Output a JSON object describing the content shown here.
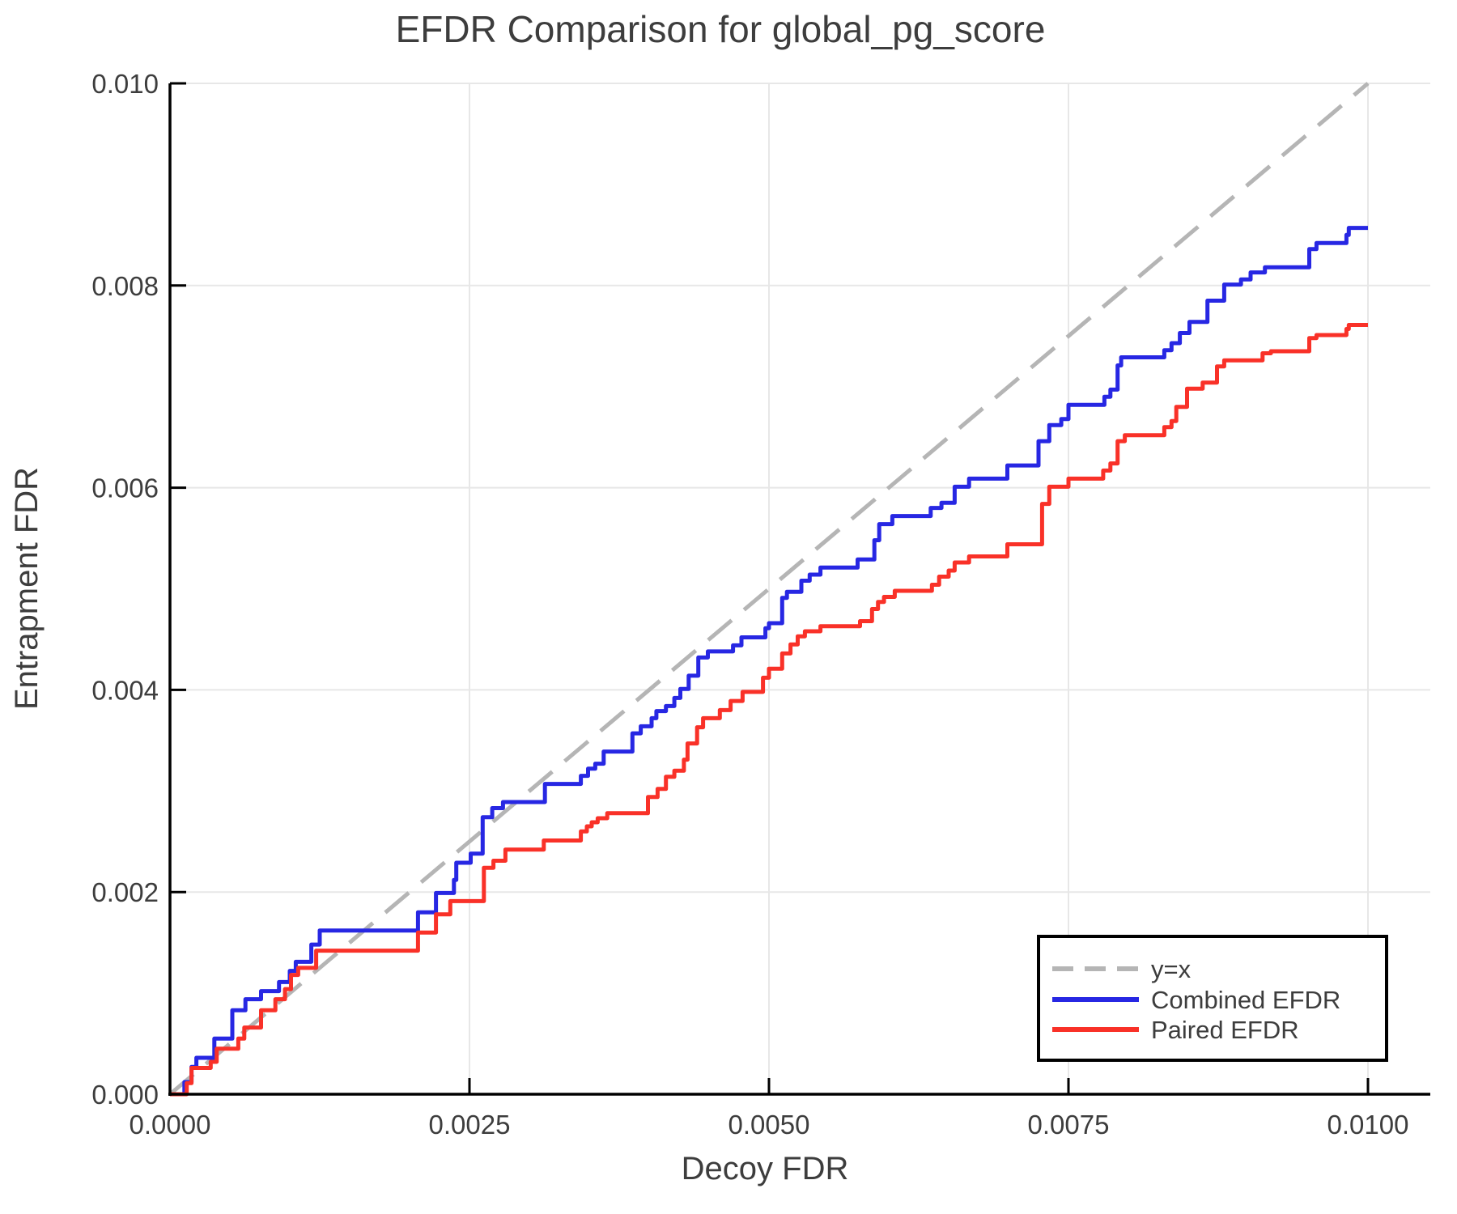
{
  "title": "EFDR Comparison for global_pg_score",
  "axes": {
    "x": {
      "label": "Decoy FDR",
      "tick_values": [
        0,
        0.0025,
        0.005,
        0.0075,
        0.01
      ],
      "tick_labels": [
        "0.0000",
        "0.0025",
        "0.0050",
        "0.0075",
        "0.0100"
      ],
      "range": [
        0,
        0.01052
      ]
    },
    "y": {
      "label": "Entrapment FDR",
      "tick_values": [
        0,
        0.002,
        0.004,
        0.006,
        0.008,
        0.01
      ],
      "tick_labels": [
        "0.000",
        "0.002",
        "0.004",
        "0.006",
        "0.008",
        "0.010"
      ],
      "range": [
        0,
        0.01
      ]
    }
  },
  "legend": {
    "position": "lower right",
    "items": [
      {
        "label": "y=x",
        "color": "#b5b5b5",
        "dashed": true
      },
      {
        "label": "Combined EFDR",
        "color": "#2727e3",
        "dashed": false
      },
      {
        "label": "Paired EFDR",
        "color": "#f93128",
        "dashed": false
      }
    ]
  },
  "colors": {
    "grid": "#e7e7e7",
    "axis": "#000000",
    "text": "#3d3d3d",
    "background": "#ffffff",
    "combined": "#2727e3",
    "paired": "#f93128",
    "identity": "#b5b5b5"
  },
  "chart_data": {
    "type": "line",
    "title": "EFDR Comparison for global_pg_score",
    "xlabel": "Decoy FDR",
    "ylabel": "Entrapment FDR",
    "xlim": [
      0,
      0.01
    ],
    "ylim": [
      0,
      0.01
    ],
    "grid": true,
    "legend_position": "lower right",
    "series": [
      {
        "name": "y=x",
        "style": "dashed",
        "color": "#b5b5b5",
        "points": [
          [
            0,
            0
          ],
          [
            0.01,
            0.01
          ]
        ]
      },
      {
        "name": "Combined EFDR",
        "style": "step",
        "color": "#2727e3",
        "end_x": 0.01,
        "risers": [
          [
            0.00012,
            0.00012
          ],
          [
            0.00018,
            0.00027
          ],
          [
            0.00022,
            0.00036
          ],
          [
            0.00037,
            0.00055
          ],
          [
            0.00052,
            0.00083
          ],
          [
            0.00063,
            0.00094
          ],
          [
            0.00076,
            0.00102
          ],
          [
            0.00091,
            0.00111
          ],
          [
            0.001,
            0.00122
          ],
          [
            0.00105,
            0.00131
          ],
          [
            0.00118,
            0.00148
          ],
          [
            0.00125,
            0.00162
          ],
          [
            0.00207,
            0.0018
          ],
          [
            0.00222,
            0.00199
          ],
          [
            0.00237,
            0.00212
          ],
          [
            0.00239,
            0.00229
          ],
          [
            0.00251,
            0.00238
          ],
          [
            0.00261,
            0.00274
          ],
          [
            0.00269,
            0.00283
          ],
          [
            0.00278,
            0.00289
          ],
          [
            0.00313,
            0.00307
          ],
          [
            0.00343,
            0.00315
          ],
          [
            0.00349,
            0.00322
          ],
          [
            0.00355,
            0.00327
          ],
          [
            0.00362,
            0.00339
          ],
          [
            0.00386,
            0.00357
          ],
          [
            0.00393,
            0.00364
          ],
          [
            0.00402,
            0.00372
          ],
          [
            0.00406,
            0.00379
          ],
          [
            0.00414,
            0.00384
          ],
          [
            0.00421,
            0.00392
          ],
          [
            0.00426,
            0.00401
          ],
          [
            0.00433,
            0.00414
          ],
          [
            0.00441,
            0.00432
          ],
          [
            0.00449,
            0.00438
          ],
          [
            0.0047,
            0.00444
          ],
          [
            0.00477,
            0.00452
          ],
          [
            0.00497,
            0.00461
          ],
          [
            0.005,
            0.00466
          ],
          [
            0.00511,
            0.00491
          ],
          [
            0.00515,
            0.00497
          ],
          [
            0.00527,
            0.00508
          ],
          [
            0.00534,
            0.00514
          ],
          [
            0.00543,
            0.00521
          ],
          [
            0.00574,
            0.00529
          ],
          [
            0.00588,
            0.00548
          ],
          [
            0.00592,
            0.00564
          ],
          [
            0.00603,
            0.00572
          ],
          [
            0.00635,
            0.0058
          ],
          [
            0.00644,
            0.00585
          ],
          [
            0.00655,
            0.00601
          ],
          [
            0.00667,
            0.00609
          ],
          [
            0.00699,
            0.00622
          ],
          [
            0.00725,
            0.00646
          ],
          [
            0.00734,
            0.00662
          ],
          [
            0.00744,
            0.00668
          ],
          [
            0.0075,
            0.00682
          ],
          [
            0.0078,
            0.0069
          ],
          [
            0.00785,
            0.00697
          ],
          [
            0.00791,
            0.00721
          ],
          [
            0.00794,
            0.00729
          ],
          [
            0.0083,
            0.00736
          ],
          [
            0.00836,
            0.00743
          ],
          [
            0.00843,
            0.00753
          ],
          [
            0.00851,
            0.00764
          ],
          [
            0.00866,
            0.00785
          ],
          [
            0.0088,
            0.00801
          ],
          [
            0.00894,
            0.00806
          ],
          [
            0.00902,
            0.00813
          ],
          [
            0.00914,
            0.00818
          ],
          [
            0.00951,
            0.00836
          ],
          [
            0.00957,
            0.00842
          ],
          [
            0.00982,
            0.0085
          ],
          [
            0.00984,
            0.00857
          ]
        ]
      },
      {
        "name": "Paired EFDR",
        "style": "step",
        "color": "#f93128",
        "end_x": 0.01,
        "risers": [
          [
            0.00014,
            0.00011
          ],
          [
            0.00018,
            0.00026
          ],
          [
            0.00034,
            0.00032
          ],
          [
            0.00039,
            0.00045
          ],
          [
            0.00057,
            0.00055
          ],
          [
            0.00062,
            0.00066
          ],
          [
            0.00076,
            0.00083
          ],
          [
            0.00088,
            0.00094
          ],
          [
            0.00096,
            0.00104
          ],
          [
            0.00101,
            0.00118
          ],
          [
            0.00107,
            0.00125
          ],
          [
            0.00122,
            0.00142
          ],
          [
            0.00207,
            0.0016
          ],
          [
            0.00222,
            0.00178
          ],
          [
            0.00234,
            0.00191
          ],
          [
            0.00262,
            0.00224
          ],
          [
            0.0027,
            0.00231
          ],
          [
            0.0028,
            0.00242
          ],
          [
            0.00312,
            0.00251
          ],
          [
            0.00343,
            0.0026
          ],
          [
            0.00348,
            0.00265
          ],
          [
            0.00352,
            0.00269
          ],
          [
            0.00357,
            0.00273
          ],
          [
            0.00365,
            0.00278
          ],
          [
            0.00399,
            0.00294
          ],
          [
            0.00407,
            0.00302
          ],
          [
            0.00414,
            0.00314
          ],
          [
            0.00421,
            0.0032
          ],
          [
            0.00429,
            0.00331
          ],
          [
            0.00432,
            0.00347
          ],
          [
            0.0044,
            0.00363
          ],
          [
            0.00445,
            0.00372
          ],
          [
            0.00459,
            0.0038
          ],
          [
            0.00468,
            0.00389
          ],
          [
            0.00478,
            0.00398
          ],
          [
            0.00495,
            0.00412
          ],
          [
            0.005,
            0.00421
          ],
          [
            0.00511,
            0.00436
          ],
          [
            0.00518,
            0.00445
          ],
          [
            0.00524,
            0.00453
          ],
          [
            0.0053,
            0.00458
          ],
          [
            0.00543,
            0.00463
          ],
          [
            0.00576,
            0.00468
          ],
          [
            0.00586,
            0.0048
          ],
          [
            0.00591,
            0.00487
          ],
          [
            0.00596,
            0.00492
          ],
          [
            0.00605,
            0.00498
          ],
          [
            0.00636,
            0.00504
          ],
          [
            0.00642,
            0.00512
          ],
          [
            0.0065,
            0.00518
          ],
          [
            0.00655,
            0.00526
          ],
          [
            0.00667,
            0.00532
          ],
          [
            0.00699,
            0.00544
          ],
          [
            0.00728,
            0.00584
          ],
          [
            0.00734,
            0.00601
          ],
          [
            0.0075,
            0.00609
          ],
          [
            0.00779,
            0.00617
          ],
          [
            0.00785,
            0.00624
          ],
          [
            0.00791,
            0.00646
          ],
          [
            0.00797,
            0.00652
          ],
          [
            0.0083,
            0.0066
          ],
          [
            0.00836,
            0.00666
          ],
          [
            0.0084,
            0.0068
          ],
          [
            0.00849,
            0.00698
          ],
          [
            0.00862,
            0.00704
          ],
          [
            0.00874,
            0.0072
          ],
          [
            0.0088,
            0.00726
          ],
          [
            0.00912,
            0.00733
          ],
          [
            0.00919,
            0.00735
          ],
          [
            0.00951,
            0.00748
          ],
          [
            0.00957,
            0.00751
          ],
          [
            0.00982,
            0.00757
          ],
          [
            0.00984,
            0.00761
          ]
        ]
      }
    ]
  }
}
